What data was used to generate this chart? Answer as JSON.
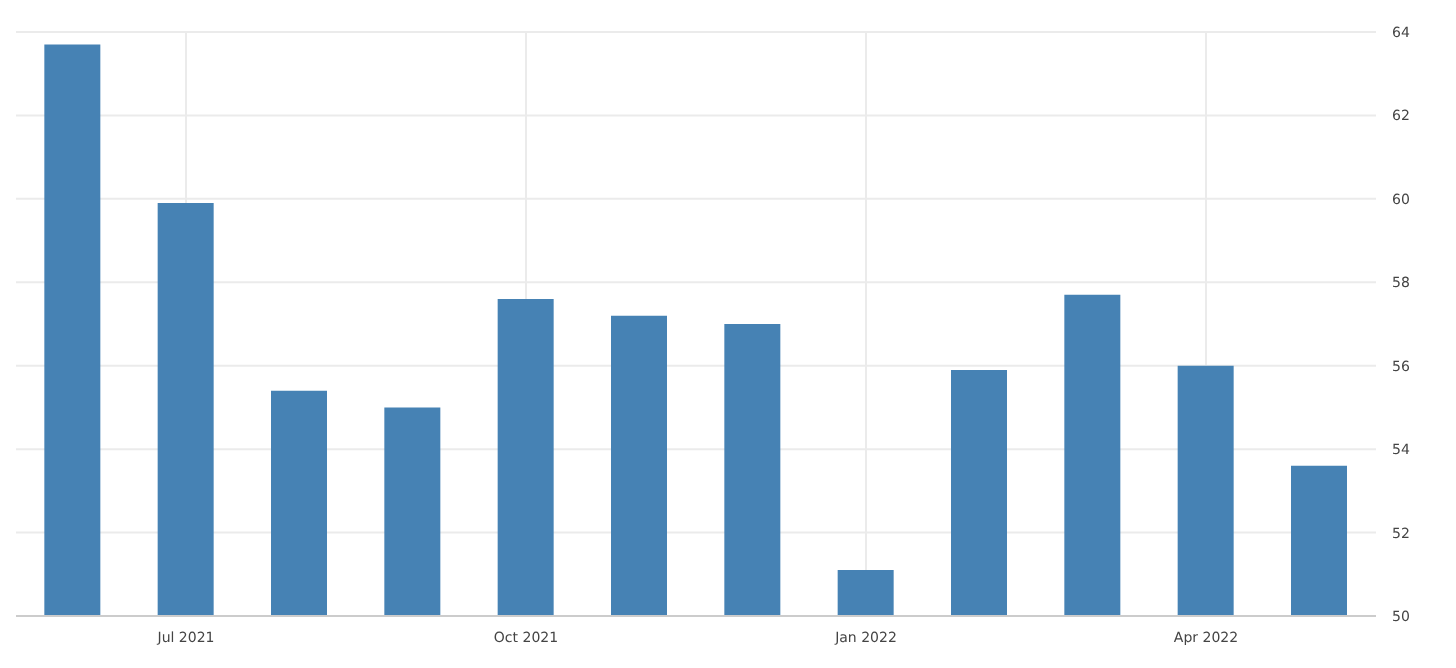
{
  "chart_data": {
    "type": "bar",
    "categories": [
      null,
      "Jul 2021",
      null,
      null,
      "Oct 2021",
      null,
      null,
      "Jan 2022",
      null,
      null,
      "Apr 2022",
      null
    ],
    "values": [
      63.7,
      59.9,
      55.4,
      55.0,
      57.6,
      57.2,
      57.0,
      51.1,
      55.9,
      57.7,
      56.0,
      53.6
    ],
    "color": "#4682b4",
    "ylim": [
      50,
      64
    ],
    "yticks": [
      50,
      52,
      54,
      56,
      58,
      60,
      62,
      64
    ],
    "grid": true
  }
}
